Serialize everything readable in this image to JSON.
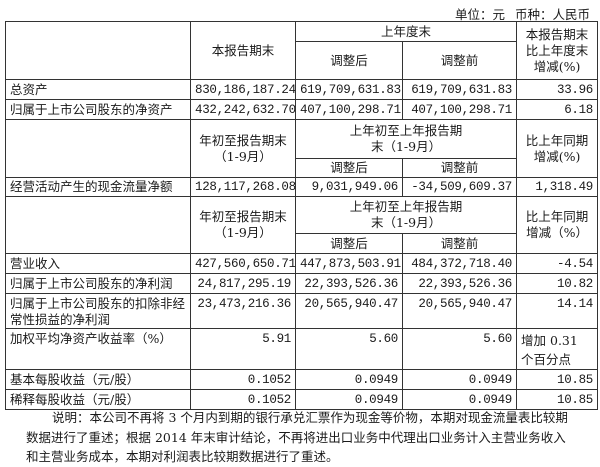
{
  "unit_line": {
    "unit": "单位：元",
    "currency": "币种：人民币"
  },
  "header1": {
    "current_end": "本报告期末",
    "last_year_end": "上年度末",
    "adjusted_after": "调整后",
    "adjusted_before": "调整前",
    "change": "本报告期末比上年度末增减(%)"
  },
  "rows1": [
    {
      "label": "总资产",
      "current": "830,186,187.24",
      "after": "619,709,631.83",
      "before": "619,709,631.83",
      "change": "33.96"
    },
    {
      "label": "归属于上市公司股东的净资产",
      "current": "432,242,632.70",
      "after": "407,100,298.71",
      "before": "407,100,298.71",
      "change": "6.18"
    }
  ],
  "header2": {
    "ytd": "年初至报告期末（1-9月）",
    "last_ytd": "上年初至上年报告期末（1-9月）",
    "adjusted_after": "调整后",
    "adjusted_before": "调整前",
    "change": "比上年同期增减(%)"
  },
  "rows2": [
    {
      "label": "经营活动产生的现金流量净额",
      "current": "128,117,268.08",
      "after": "9,031,949.06",
      "before": "-34,509,609.37",
      "change": "1,318.49"
    }
  ],
  "header3": {
    "ytd": "年初至报告期末（1-9月）",
    "last_ytd": "上年初至上年报告期末（1-9月）",
    "adjusted_after": "调整后",
    "adjusted_before": "调整前",
    "change": "比上年同期增减（%）"
  },
  "rows3": [
    {
      "label": "营业收入",
      "current": "427,560,650.71",
      "after": "447,873,503.91",
      "before": "484,372,718.40",
      "change": "-4.54"
    },
    {
      "label": "归属于上市公司股东的净利润",
      "current": "24,817,295.19",
      "after": "22,393,526.36",
      "before": "22,393,526.36",
      "change": "10.82"
    },
    {
      "label": "归属于上市公司股东的扣除非经常性损益的净利润",
      "current": "23,473,216.36",
      "after": "20,565,940.47",
      "before": "20,565,940.47",
      "change": "14.14"
    },
    {
      "label": "加权平均净资产收益率（%）",
      "current": "5.91",
      "after": "5.60",
      "before": "5.60",
      "change": "增加 0.31 个百分点"
    },
    {
      "label": "基本每股收益（元/股）",
      "current": "0.1052",
      "after": "0.0949",
      "before": "0.0949",
      "change": "10.85"
    },
    {
      "label": "稀释每股收益（元/股）",
      "current": "0.1052",
      "after": "0.0949",
      "before": "0.0949",
      "change": "10.85"
    }
  ],
  "note": "说明：本公司不再将 3 个月内到期的银行承兑汇票作为现金等价物，本期对现金流量表比较期数据进行了重述；根据 2014 年末审计结论，不再将进出口业务中代理出口业务计入主营业务收入和主营业务成本，本期对利润表比较期数据进行了重述。"
}
